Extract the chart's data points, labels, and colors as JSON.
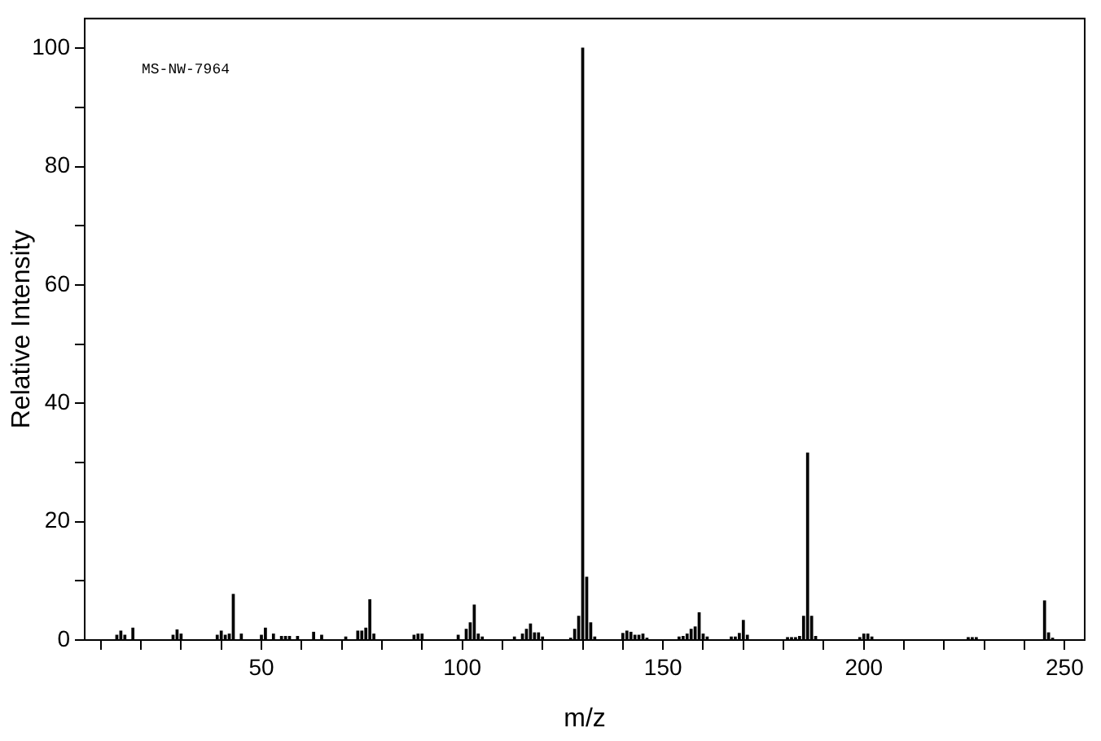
{
  "chart_data": {
    "type": "bar",
    "xlabel": "m/z",
    "ylabel": "Relative Intensity",
    "annotations": [
      "MS-NW-7964"
    ],
    "x": [
      14,
      15,
      16,
      18,
      28,
      29,
      30,
      39,
      40,
      41,
      42,
      43,
      45,
      50,
      51,
      53,
      55,
      56,
      57,
      59,
      63,
      65,
      71,
      74,
      75,
      76,
      77,
      78,
      88,
      89,
      90,
      99,
      101,
      102,
      103,
      104,
      105,
      113,
      115,
      116,
      117,
      118,
      119,
      120,
      127,
      128,
      129,
      130,
      131,
      132,
      133,
      140,
      141,
      142,
      143,
      144,
      145,
      146,
      154,
      155,
      156,
      157,
      158,
      159,
      160,
      161,
      167,
      168,
      169,
      170,
      171,
      181,
      182,
      183,
      184,
      185,
      186,
      187,
      188,
      199,
      200,
      201,
      202,
      226,
      227,
      228,
      245,
      246,
      247
    ],
    "values": [
      0.8,
      1.5,
      0.8,
      2,
      0.8,
      1.7,
      1,
      0.8,
      1.5,
      0.8,
      1,
      7.7,
      1,
      0.8,
      2,
      1,
      0.6,
      0.6,
      0.6,
      0.6,
      1.3,
      0.8,
      0.5,
      1.5,
      1.5,
      2,
      6.8,
      1,
      0.8,
      1,
      1,
      0.8,
      1.8,
      2.9,
      5.9,
      1,
      0.5,
      0.5,
      1,
      1.8,
      2.7,
      1.2,
      1.2,
      0.5,
      0.3,
      1.8,
      4,
      100,
      10.6,
      2.9,
      0.5,
      1.1,
      1.5,
      1.3,
      0.8,
      0.8,
      1,
      0.3,
      0.5,
      0.6,
      1,
      1.8,
      2.2,
      4.6,
      1,
      0.5,
      0.5,
      0.5,
      1.1,
      3.3,
      0.8,
      0.4,
      0.4,
      0.4,
      0.6,
      4,
      31.6,
      4,
      0.6,
      0.4,
      1,
      1,
      0.5,
      0.4,
      0.4,
      0.4,
      6.6,
      1.2,
      0.3
    ],
    "color": "#000000",
    "xlim": [
      6,
      255
    ],
    "xticks": [
      {
        "value": 10,
        "label": null
      },
      {
        "value": 20,
        "label": null
      },
      {
        "value": 30,
        "label": null
      },
      {
        "value": 40,
        "label": null
      },
      50,
      {
        "value": 60,
        "label": null
      },
      {
        "value": 70,
        "label": null
      },
      {
        "value": 80,
        "label": null
      },
      {
        "value": 90,
        "label": null
      },
      100,
      {
        "value": 110,
        "label": null
      },
      {
        "value": 120,
        "label": null
      },
      {
        "value": 130,
        "label": null
      },
      {
        "value": 140,
        "label": null
      },
      150,
      {
        "value": 160,
        "label": null
      },
      {
        "value": 170,
        "label": null
      },
      {
        "value": 180,
        "label": null
      },
      {
        "value": 190,
        "label": null
      },
      200,
      {
        "value": 210,
        "label": null
      },
      {
        "value": 220,
        "label": null
      },
      {
        "value": 230,
        "label": null
      },
      {
        "value": 240,
        "label": null
      },
      250
    ],
    "ylim": [
      0,
      105
    ],
    "yticks": [
      0,
      {
        "value": 10,
        "label": null
      },
      20,
      {
        "value": 30,
        "label": null
      },
      40,
      {
        "value": 50,
        "label": null
      },
      60,
      {
        "value": 70,
        "label": null
      },
      80,
      {
        "value": 90,
        "label": null
      },
      100
    ],
    "grid": false,
    "legend": false
  }
}
